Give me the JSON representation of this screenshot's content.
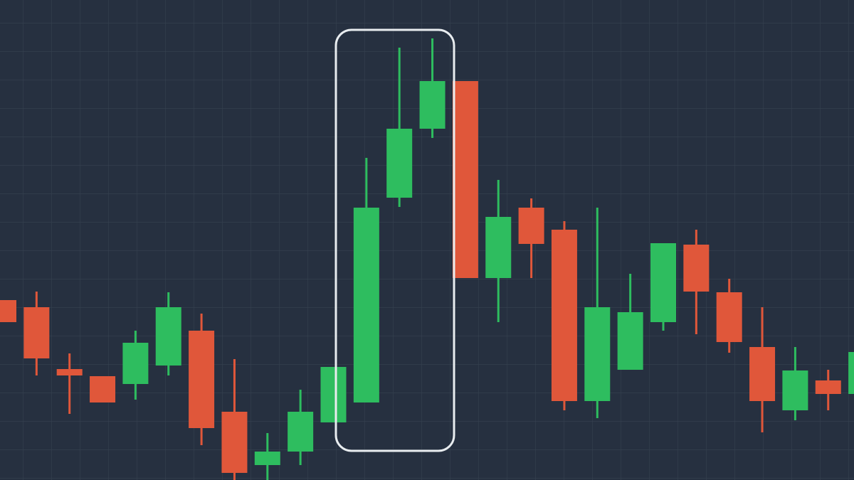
{
  "chart_data": {
    "type": "candlestick",
    "ylim": [
      0,
      675
    ],
    "grid": true,
    "up_color": "#2ebd5f",
    "down_color": "#e0573a",
    "open": [
      253,
      243,
      156,
      146,
      135,
      161,
      210,
      96,
      21,
      40,
      81,
      109,
      397,
      494,
      561,
      284,
      383,
      352,
      111,
      155,
      222,
      331,
      264,
      187,
      98,
      140,
      121
    ],
    "high": [
      253,
      265,
      178,
      146,
      210,
      264,
      234,
      170,
      66,
      127,
      159,
      453,
      608,
      621,
      561,
      422,
      396,
      364,
      383,
      290,
      333,
      352,
      283,
      243,
      187,
      155,
      180
    ],
    "low": [
      222,
      147,
      93,
      109,
      113,
      147,
      49,
      0,
      0,
      21,
      81,
      109,
      384,
      481,
      284,
      222,
      284,
      98,
      87,
      155,
      210,
      205,
      179,
      67,
      84,
      98,
      121
    ],
    "close": [
      222,
      171,
      147,
      109,
      193,
      243,
      73,
      10,
      40,
      96,
      159,
      383,
      494,
      561,
      284,
      370,
      332,
      111,
      243,
      236,
      333,
      265,
      194,
      111,
      154,
      121,
      180
    ]
  }
}
